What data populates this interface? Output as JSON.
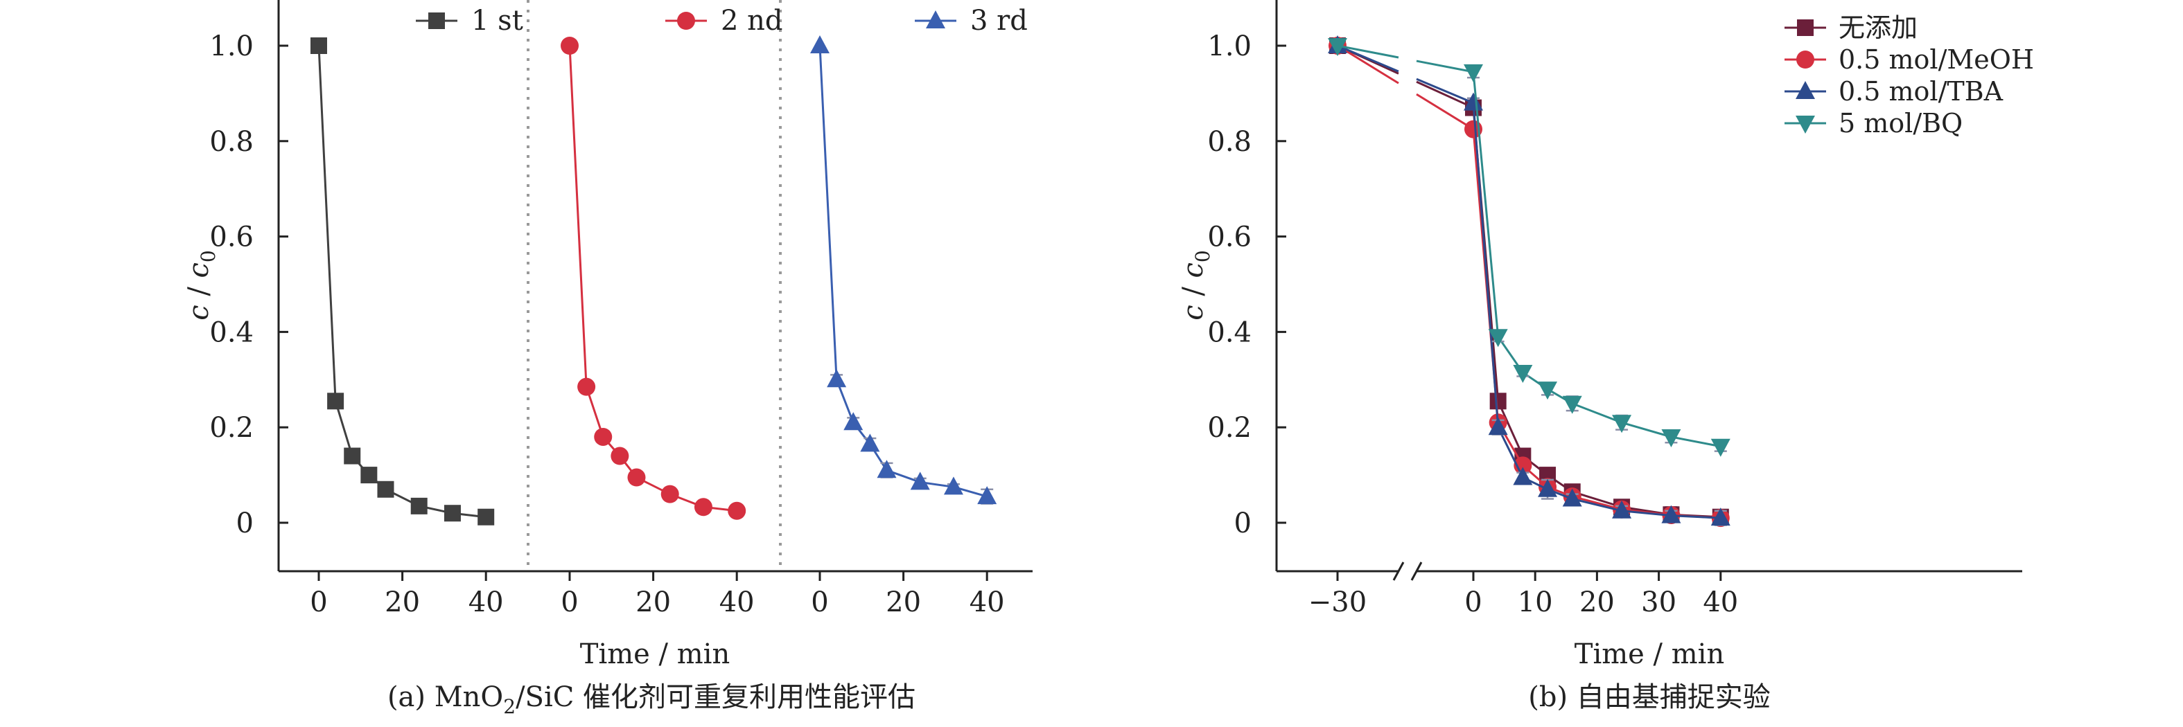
{
  "chart_data": [
    {
      "type": "line",
      "panel_caption_prefix": "(a) MnO",
      "panel_caption_sub": "2",
      "panel_caption_rest": "/SiC 催化剂可重复利用性能评估",
      "xlabel": "Time / min",
      "ylabel_main": "c",
      "ylabel_sep": " / ",
      "ylabel_sub_base": "c",
      "ylabel_sub": "0",
      "ylim": [
        -0.1,
        1.1
      ],
      "yticks": [
        0,
        0.2,
        0.4,
        0.6,
        0.8,
        1.0
      ],
      "ytick_labels": [
        "0",
        "0.2",
        "0.4",
        "0.6",
        "0.8",
        "1.0"
      ],
      "xticks": [
        0,
        20,
        40
      ],
      "xtick_labels": [
        "0",
        "20",
        "40"
      ],
      "segment_xlim": [
        -10,
        50
      ],
      "legend_position": "top (each series labelled above its segment)",
      "series": [
        {
          "name": "1 st",
          "marker": "square",
          "color": "#404040",
          "x": [
            0,
            4,
            8,
            12,
            16,
            24,
            32,
            40
          ],
          "y": [
            1.0,
            0.255,
            0.14,
            0.1,
            0.07,
            0.035,
            0.02,
            0.012
          ],
          "err": [
            0,
            0.006,
            0.008,
            0.007,
            0.006,
            0.007,
            0.012,
            0.01
          ]
        },
        {
          "name": "2 nd",
          "marker": "circle",
          "color": "#d53040",
          "x": [
            0,
            4,
            8,
            12,
            16,
            24,
            32,
            40
          ],
          "y": [
            1.0,
            0.285,
            0.18,
            0.14,
            0.095,
            0.06,
            0.033,
            0.025
          ],
          "err": [
            0,
            0.01,
            0.01,
            0.01,
            0.012,
            0.008,
            0.005,
            0.004
          ]
        },
        {
          "name": "3 rd",
          "marker": "triangle",
          "color": "#3a5fb0",
          "x": [
            0,
            4,
            8,
            12,
            16,
            24,
            32,
            40
          ],
          "y": [
            1.0,
            0.3,
            0.21,
            0.165,
            0.11,
            0.085,
            0.075,
            0.055
          ],
          "err": [
            0,
            0.01,
            0.01,
            0.012,
            0.015,
            0.008,
            0.006,
            0.015
          ]
        }
      ]
    },
    {
      "type": "line",
      "panel_caption": "(b) 自由基捕捉实验",
      "xlabel": "Time / min",
      "ylabel_main": "c",
      "ylabel_sep": " / ",
      "ylabel_sub_base": "c",
      "ylabel_sub": "0",
      "ylim": [
        -0.1,
        1.1
      ],
      "yticks": [
        0,
        0.2,
        0.4,
        0.6,
        0.8,
        1.0
      ],
      "ytick_labels": [
        "0",
        "0.2",
        "0.4",
        "0.6",
        "0.8",
        "1.0"
      ],
      "xticks": [
        -30,
        0,
        10,
        20,
        30,
        40
      ],
      "xtick_labels": [
        "−30",
        "0",
        "10",
        "20",
        "30",
        "40"
      ],
      "axis_break": "between −30 and 0",
      "legend_position": "top-right",
      "series": [
        {
          "name": "无添加",
          "marker": "square",
          "color": "#6b1f3a",
          "x": [
            -30,
            0,
            4,
            8,
            12,
            16,
            24,
            32,
            40
          ],
          "y": [
            1.0,
            0.87,
            0.255,
            0.14,
            0.1,
            0.065,
            0.033,
            0.017,
            0.012
          ],
          "err": [
            0,
            0.01,
            0.01,
            0.01,
            0.012,
            0.008,
            0.007,
            0.016,
            0.014
          ]
        },
        {
          "name": "0.5 mol/MeOH",
          "marker": "circle",
          "color": "#d53040",
          "x": [
            -30,
            0,
            4,
            8,
            12,
            16,
            24,
            32,
            40
          ],
          "y": [
            1.0,
            0.825,
            0.21,
            0.12,
            0.075,
            0.055,
            0.028,
            0.016,
            0.01
          ],
          "err": [
            0,
            0.008,
            0.01,
            0.012,
            0.015,
            0.01,
            0.01,
            0.008,
            0.008
          ]
        },
        {
          "name": "0.5 mol/TBA",
          "marker": "triangle",
          "color": "#2c4a8c",
          "x": [
            -30,
            0,
            4,
            8,
            12,
            16,
            24,
            32,
            40
          ],
          "y": [
            1.0,
            0.88,
            0.2,
            0.095,
            0.07,
            0.05,
            0.025,
            0.015,
            0.01
          ],
          "err": [
            0,
            0.01,
            0.015,
            0.01,
            0.02,
            0.01,
            0.01,
            0.01,
            0.015
          ]
        },
        {
          "name": "5 mol/BQ",
          "marker": "triangle-down",
          "color": "#2e8b8b",
          "x": [
            -30,
            0,
            4,
            8,
            12,
            16,
            24,
            32,
            40
          ],
          "y": [
            1.0,
            0.945,
            0.39,
            0.315,
            0.28,
            0.25,
            0.21,
            0.18,
            0.16
          ],
          "err": [
            0,
            0.012,
            0.01,
            0.008,
            0.012,
            0.015,
            0.015,
            0.012,
            0.01
          ]
        }
      ]
    }
  ]
}
